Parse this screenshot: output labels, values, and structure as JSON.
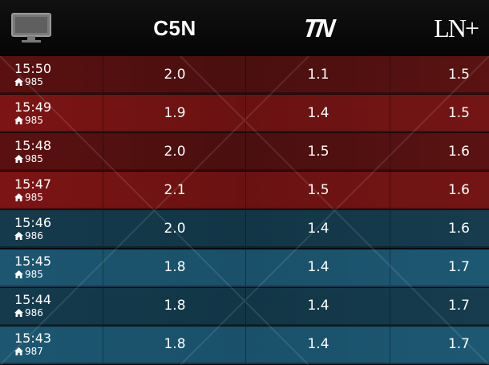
{
  "header": {
    "monitor_icon": "monitor-icon",
    "channels": [
      "C5N",
      "TN",
      "LN+"
    ]
  },
  "rows": [
    {
      "time": "15:50",
      "home": "985",
      "c5n": "2.0",
      "tn": "1.1",
      "ln": "1.5",
      "theme": "red",
      "shade": "dark"
    },
    {
      "time": "15:49",
      "home": "985",
      "c5n": "1.9",
      "tn": "1.4",
      "ln": "1.5",
      "theme": "red",
      "shade": "light"
    },
    {
      "time": "15:48",
      "home": "985",
      "c5n": "2.0",
      "tn": "1.5",
      "ln": "1.6",
      "theme": "red",
      "shade": "dark"
    },
    {
      "time": "15:47",
      "home": "985",
      "c5n": "2.1",
      "tn": "1.5",
      "ln": "1.6",
      "theme": "red",
      "shade": "light"
    },
    {
      "time": "15:46",
      "home": "986",
      "c5n": "2.0",
      "tn": "1.4",
      "ln": "1.6",
      "theme": "blue",
      "shade": "dark"
    },
    {
      "time": "15:45",
      "home": "985",
      "c5n": "1.8",
      "tn": "1.4",
      "ln": "1.7",
      "theme": "blue",
      "shade": "light"
    },
    {
      "time": "15:44",
      "home": "986",
      "c5n": "1.8",
      "tn": "1.4",
      "ln": "1.7",
      "theme": "blue",
      "shade": "dark"
    },
    {
      "time": "15:43",
      "home": "987",
      "c5n": "1.8",
      "tn": "1.4",
      "ln": "1.7",
      "theme": "blue",
      "shade": "light"
    }
  ],
  "colors": {
    "red_dark": "#5a1010",
    "red_light": "#7d1414",
    "blue_dark": "#143a4c",
    "blue_light": "#1c5670"
  }
}
